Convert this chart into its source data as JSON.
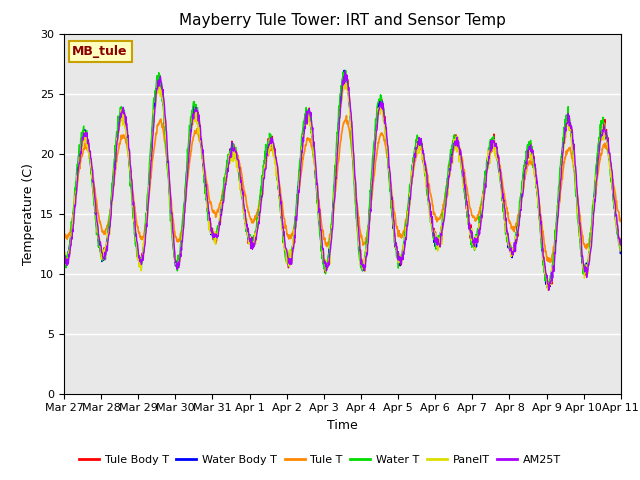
{
  "title": "Mayberry Tule Tower: IRT and Sensor Temp",
  "xlabel": "Time",
  "ylabel": "Temperature (C)",
  "ylim": [
    0,
    30
  ],
  "yticks": [
    0,
    5,
    10,
    15,
    20,
    25,
    30
  ],
  "background_color": "#e8e8e8",
  "figure_background": "#ffffff",
  "annotation_text": "MB_tule",
  "annotation_color": "#8b0000",
  "annotation_bg": "#ffffc0",
  "annotation_border": "#c8a000",
  "series": [
    {
      "label": "Tule Body T",
      "color": "#ff0000",
      "lw": 1.0
    },
    {
      "label": "Water Body T",
      "color": "#0000ff",
      "lw": 1.0
    },
    {
      "label": "Tule T",
      "color": "#ff8800",
      "lw": 1.2
    },
    {
      "label": "Water T",
      "color": "#00dd00",
      "lw": 1.0
    },
    {
      "label": "PanelT",
      "color": "#dddd00",
      "lw": 1.0
    },
    {
      "label": "AM25T",
      "color": "#aa00ff",
      "lw": 1.0
    }
  ],
  "x_tick_labels": [
    "Mar 27",
    "Mar 28",
    "Mar 29",
    "Mar 30",
    "Mar 31",
    "Apr 1",
    "Apr 2",
    "Apr 3",
    "Apr 4",
    "Apr 5",
    "Apr 6",
    "Apr 7",
    "Apr 8",
    "Apr 9",
    "Apr 10",
    "Apr 11"
  ],
  "n_days": 15,
  "pts_per_day": 96,
  "grid_color": "#ffffff",
  "title_fontsize": 11,
  "tick_fontsize": 8,
  "label_fontsize": 9,
  "legend_fontsize": 8
}
